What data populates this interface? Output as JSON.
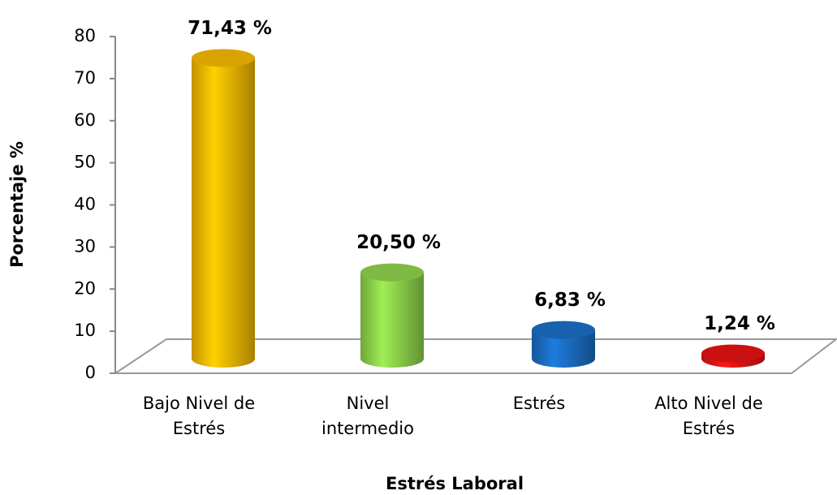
{
  "chart_data": {
    "type": "bar",
    "categories": [
      "Bajo Nivel de Estrés",
      "Nivel intermedio",
      "Estrés",
      "Alto Nivel de Estrés"
    ],
    "values": [
      71.43,
      20.5,
      6.83,
      1.24
    ],
    "value_labels": [
      "71,43 %",
      "20,50 %",
      "6,83 %",
      "1,24 %"
    ],
    "colors": [
      "#f2b600",
      "#8ccf4a",
      "#1a6cc0",
      "#e01212"
    ],
    "ylim": [
      0,
      80
    ],
    "yticks": [
      0,
      10,
      20,
      30,
      40,
      50,
      60,
      70,
      80
    ],
    "y_label": "Porcentaje %",
    "x_label": "Estrés Laboral",
    "grid": false
  }
}
